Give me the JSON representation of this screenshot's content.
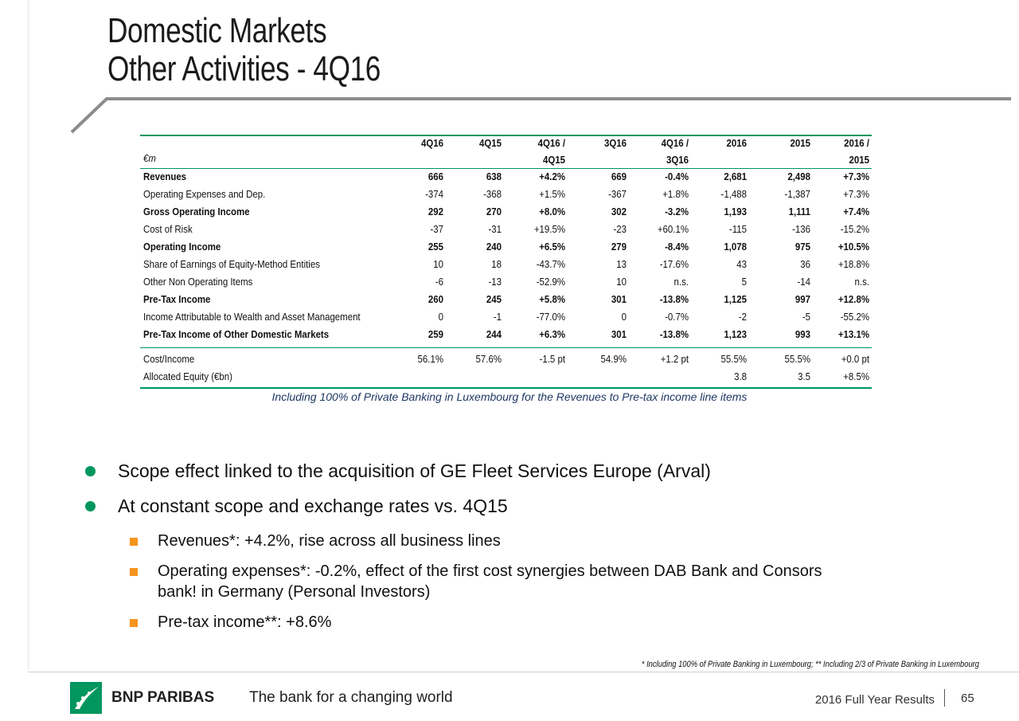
{
  "header": {
    "title_line1": "Domestic Markets",
    "title_line2": "Other Activities - 4Q16"
  },
  "table": {
    "unit": "€m",
    "header": [
      {
        "top": "4Q16"
      },
      {
        "top": "4Q15"
      },
      {
        "top": "4Q16 /",
        "bottom": "4Q15"
      },
      {
        "top": "3Q16"
      },
      {
        "top": "4Q16 /",
        "bottom": "3Q16"
      },
      {
        "top": "2016"
      },
      {
        "top": "2015"
      },
      {
        "top": "2016 /",
        "bottom": "2015"
      }
    ],
    "rows": [
      {
        "label": "Revenues",
        "bold": true,
        "values": [
          "666",
          "638",
          "+4.2%",
          "669",
          "-0.4%",
          "2,681",
          "2,498",
          "+7.3%"
        ]
      },
      {
        "label": "Operating Expenses and Dep.",
        "bold": false,
        "values": [
          "-374",
          "-368",
          "+1.5%",
          "-367",
          "+1.8%",
          "-1,488",
          "-1,387",
          "+7.3%"
        ]
      },
      {
        "label": "Gross Operating Income",
        "bold": true,
        "values": [
          "292",
          "270",
          "+8.0%",
          "302",
          "-3.2%",
          "1,193",
          "1,111",
          "+7.4%"
        ]
      },
      {
        "label": "Cost of Risk",
        "bold": false,
        "values": [
          "-37",
          "-31",
          "+19.5%",
          "-23",
          "+60.1%",
          "-115",
          "-136",
          "-15.2%"
        ]
      },
      {
        "label": "Operating Income",
        "bold": true,
        "values": [
          "255",
          "240",
          "+6.5%",
          "279",
          "-8.4%",
          "1,078",
          "975",
          "+10.5%"
        ]
      },
      {
        "label": "Share of Earnings of Equity-Method Entities",
        "bold": false,
        "values": [
          "10",
          "18",
          "-43.7%",
          "13",
          "-17.6%",
          "43",
          "36",
          "+18.8%"
        ]
      },
      {
        "label": "Other Non Operating Items",
        "bold": false,
        "values": [
          "-6",
          "-13",
          "-52.9%",
          "10",
          "n.s.",
          "5",
          "-14",
          "n.s."
        ]
      },
      {
        "label": "Pre-Tax Income",
        "bold": true,
        "values": [
          "260",
          "245",
          "+5.8%",
          "301",
          "-13.8%",
          "1,125",
          "997",
          "+12.8%"
        ]
      },
      {
        "label": "Income Attributable to Wealth and Asset Management",
        "bold": false,
        "values": [
          "0",
          "-1",
          "-77.0%",
          "0",
          "-0.7%",
          "-2",
          "-5",
          "-55.2%"
        ]
      },
      {
        "label": "Pre-Tax Income of Other Domestic Markets",
        "bold": true,
        "values": [
          "259",
          "244",
          "+6.3%",
          "301",
          "-13.8%",
          "1,123",
          "993",
          "+13.1%"
        ]
      }
    ],
    "ratio_rows": [
      {
        "label": "Cost/Income",
        "bold": false,
        "values": [
          "56.1%",
          "57.6%",
          "-1.5 pt",
          "54.9%",
          "+1.2 pt",
          "55.5%",
          "55.5%",
          "+0.0 pt"
        ]
      },
      {
        "label": "Allocated Equity (€bn)",
        "bold": false,
        "values": [
          null,
          null,
          null,
          null,
          null,
          "3.8",
          "3.5",
          "+8.5%"
        ]
      }
    ],
    "note": "Including 100% of Private Banking in Luxembourg for the Revenues to Pre-tax income line items"
  },
  "bullets": [
    {
      "text": "Scope effect linked to the acquisition of GE Fleet Services Europe (Arval)",
      "sub": []
    },
    {
      "text": "At constant scope and exchange rates vs. 4Q15",
      "sub": [
        "Revenues*: +4.2%, rise across all business lines",
        "Operating expenses*: -0.2%, effect of the first cost synergies between DAB Bank and Consors bank! in Germany (Personal Investors)",
        "Pre-tax income**: +8.6%"
      ]
    }
  ],
  "footnote": "* Including 100% of Private Banking in Luxembourg; ** Including 2/3 of Private Banking in Luxembourg",
  "footer": {
    "brand": "BNP PARIBAS",
    "tagline": "The bank for a changing world",
    "report": "2016 Full Year Results",
    "page": "65"
  }
}
